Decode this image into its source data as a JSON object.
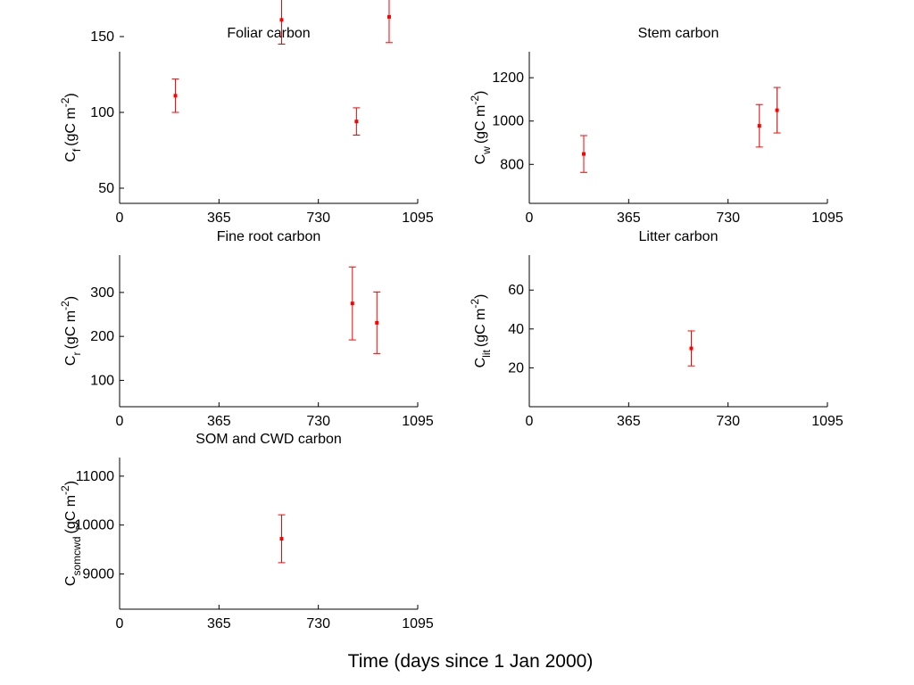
{
  "figure": {
    "xlabel": "Time (days since 1 Jan 2000)",
    "marker_color": "#ff0000",
    "axes_color": "#000000",
    "background": "#ffffff"
  },
  "chart_data": [
    {
      "type": "scatter",
      "title": "Foliar carbon",
      "ylabel": {
        "symbol": "C",
        "subscript": "f",
        "units": "(gC m",
        "exponent": "-2",
        "close": ")"
      },
      "xlim": [
        0,
        1095
      ],
      "ylim": [
        40,
        140
      ],
      "xticks": [
        0,
        365,
        730,
        1095
      ],
      "yticks": [
        50,
        100,
        150
      ],
      "grid": false,
      "series": [
        {
          "x": [
            205,
            595,
            870,
            990
          ],
          "y": [
            111,
            161,
            94,
            163
          ],
          "err": [
            11,
            16,
            9,
            17
          ]
        }
      ]
    },
    {
      "type": "scatter",
      "title": "Stem carbon",
      "ylabel": {
        "symbol": "C",
        "subscript": "w",
        "units": "(gC m",
        "exponent": "-2",
        "close": ")"
      },
      "xlim": [
        0,
        1095
      ],
      "ylim": [
        620,
        1320
      ],
      "xticks": [
        0,
        365,
        730,
        1095
      ],
      "yticks": [
        800,
        1000,
        1200
      ],
      "grid": false,
      "series": [
        {
          "x": [
            200,
            845,
            910
          ],
          "y": [
            848,
            978,
            1050
          ],
          "err": [
            85,
            98,
            105
          ]
        }
      ]
    },
    {
      "type": "scatter",
      "title": "Fine root carbon",
      "ylabel": {
        "symbol": "C",
        "subscript": "r",
        "units": "(gC m",
        "exponent": "-2",
        "close": ")"
      },
      "xlim": [
        0,
        1095
      ],
      "ylim": [
        40,
        385
      ],
      "xticks": [
        0,
        365,
        730,
        1095
      ],
      "yticks": [
        100,
        200,
        300
      ],
      "grid": false,
      "series": [
        {
          "x": [
            855,
            945
          ],
          "y": [
            275,
            231
          ],
          "err": [
            83,
            70
          ]
        }
      ]
    },
    {
      "type": "scatter",
      "title": "Litter carbon",
      "ylabel": {
        "symbol": "C",
        "subscript": "lit",
        "units": "(gC m",
        "exponent": "-2",
        "close": ")"
      },
      "xlim": [
        0,
        1095
      ],
      "ylim": [
        0,
        78
      ],
      "xticks": [
        0,
        365,
        730,
        1095
      ],
      "yticks": [
        20,
        40,
        60
      ],
      "grid": false,
      "series": [
        {
          "x": [
            595
          ],
          "y": [
            30
          ],
          "err": [
            9
          ]
        }
      ]
    },
    {
      "type": "scatter",
      "title": "SOM and CWD carbon",
      "ylabel": {
        "symbol": "C",
        "subscript": "somcwd",
        "units": "(gC m",
        "exponent": "-2",
        "close": ")"
      },
      "xlim": [
        0,
        1095
      ],
      "ylim": [
        8280,
        11380
      ],
      "xticks": [
        0,
        365,
        730,
        1095
      ],
      "yticks": [
        9000,
        10000,
        11000
      ],
      "grid": false,
      "series": [
        {
          "x": [
            595
          ],
          "y": [
            9720
          ],
          "err": [
            490
          ]
        }
      ]
    }
  ]
}
